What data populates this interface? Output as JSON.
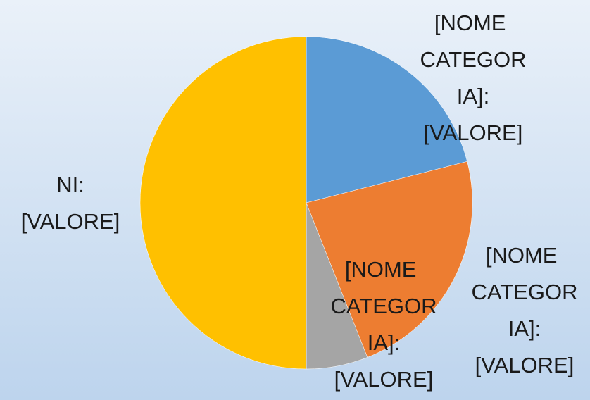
{
  "chart_data": {
    "type": "pie",
    "categories": [
      "[NOME CATEGORIA]:",
      "[NOME CATEGORIA]:",
      "[NOME CATEGORIA]:",
      "NI:"
    ],
    "values": [
      21,
      23,
      6,
      50
    ],
    "value_labels": [
      "[VALORE]",
      "[VALORE]",
      "[VALORE]",
      "[VALORE]"
    ],
    "colors": [
      "#5b9bd5",
      "#ed7d31",
      "#a5a5a5",
      "#ffc000"
    ]
  }
}
